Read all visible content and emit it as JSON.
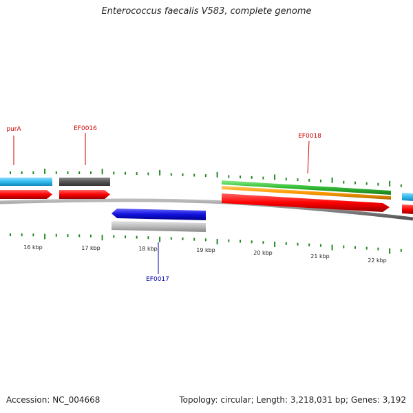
{
  "title": "Enterococcus faecalis V583, complete genome",
  "footer": {
    "accession": "Accession: NC_004668",
    "summary": "Topology: circular; Length: 3,218,031 bp; Genes: 3,192"
  },
  "ruler_labels": [
    "16 kbp",
    "17 kbp",
    "18 kbp",
    "19 kbp",
    "20 kbp",
    "21 kbp",
    "22 kbp"
  ],
  "gene_labels": {
    "purA": "purA",
    "EF0016": "EF0016",
    "EF0017": "EF0017",
    "EF0018": "EF0018"
  },
  "colors": {
    "cds_forward": "#ff0000",
    "gene_cyan": "#33bbee",
    "gene_dark": "#555555",
    "gene_blue": "#1111dd",
    "gene_gray": "#bbbbbb",
    "gene_green": "#33bb33",
    "gene_orange": "#ff9900",
    "tick_green": "#228822",
    "backbone": "#888888"
  }
}
